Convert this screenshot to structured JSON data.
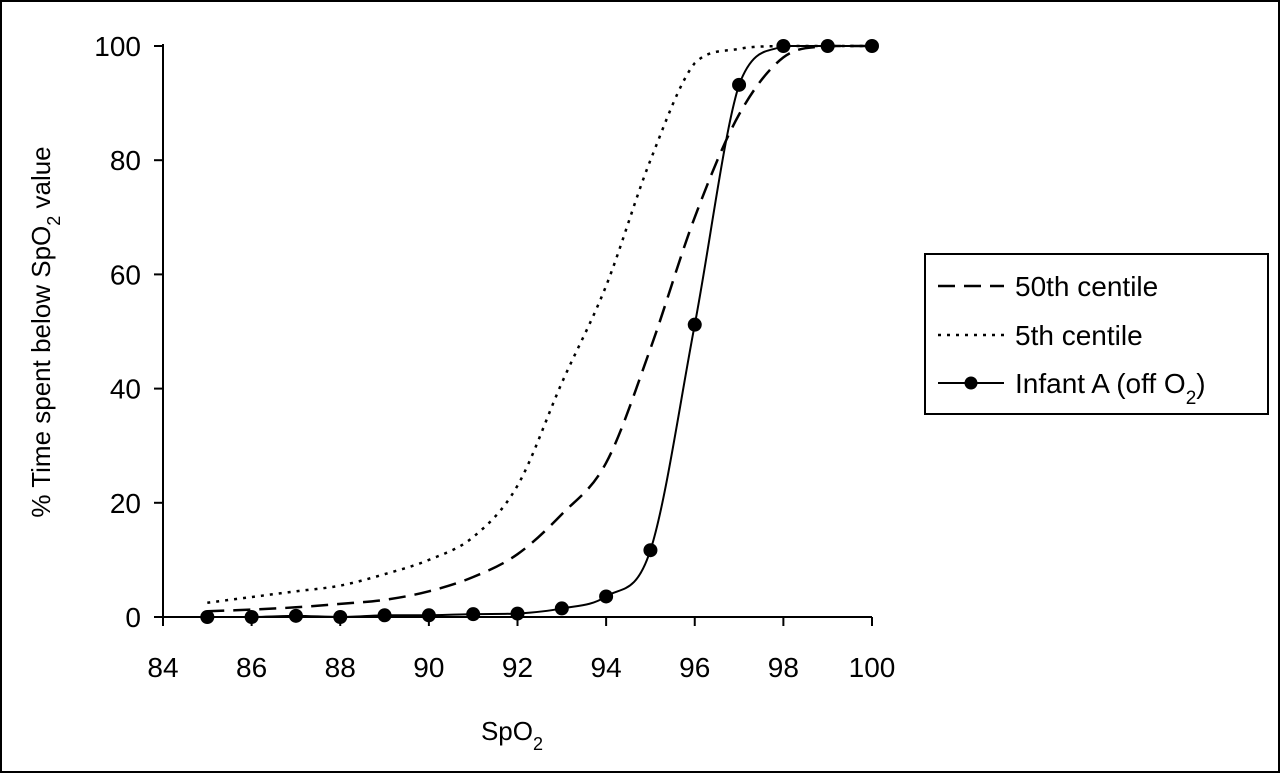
{
  "chart_data": {
    "type": "line",
    "xlabel": {
      "main": "SpO",
      "sub": "2"
    },
    "ylabel": {
      "pre": "% Time spent below SpO",
      "sub": "2",
      "post": " value"
    },
    "xlim": [
      84,
      100
    ],
    "ylim": [
      0,
      100
    ],
    "xticks": [
      "84",
      "86",
      "88",
      "90",
      "92",
      "94",
      "96",
      "98",
      "100"
    ],
    "yticks": [
      "0",
      "20",
      "40",
      "60",
      "80",
      "100"
    ],
    "legend_position": "right",
    "series": [
      {
        "name": "50th centile",
        "style": "dashed",
        "color": "#000000",
        "x": [
          85,
          86,
          87,
          88,
          89,
          90,
          91,
          92,
          93,
          94,
          95,
          96,
          97,
          98,
          99,
          100
        ],
        "y": [
          1,
          1.3,
          1.7,
          2.3,
          3,
          4.5,
          7,
          11,
          18,
          27,
          47,
          70,
          88,
          98,
          100,
          100
        ]
      },
      {
        "name": "5th centile",
        "style": "dotted",
        "color": "#000000",
        "x": [
          85,
          86,
          87,
          88,
          89,
          90,
          91,
          92,
          93,
          94,
          95,
          96,
          97,
          98,
          99,
          100
        ],
        "y": [
          2.5,
          3.5,
          4.5,
          5.5,
          7.5,
          10,
          14,
          23,
          41,
          58,
          80,
          97,
          99.5,
          100,
          100,
          100
        ]
      },
      {
        "name": {
          "pre": "Infant A (off O",
          "sub": "2",
          "post": ")"
        },
        "style": "solid-markers",
        "color": "#000000",
        "x": [
          85,
          86,
          87,
          88,
          89,
          90,
          91,
          92,
          93,
          94,
          95,
          96,
          97,
          98,
          99,
          100
        ],
        "y": [
          0,
          0,
          0.2,
          0,
          0.3,
          0.3,
          0.5,
          0.6,
          1.5,
          3.6,
          11.7,
          51.2,
          93.2,
          100,
          100,
          100
        ]
      }
    ]
  }
}
